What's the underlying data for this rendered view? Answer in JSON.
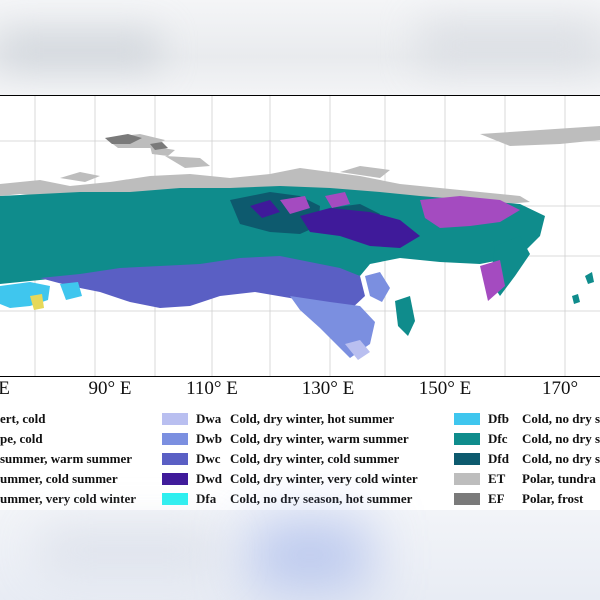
{
  "map": {
    "longitude_labels": [
      "E",
      "90° E",
      "110° E",
      "130° E",
      "150° E",
      "170°"
    ]
  },
  "legend": {
    "col1": [
      {
        "code": "",
        "label": "ert, cold"
      },
      {
        "code": "",
        "label": "pe, cold"
      },
      {
        "code": "",
        "label": "summer, warm summer"
      },
      {
        "code": "",
        "label": "ummer, cold summer"
      },
      {
        "code": "",
        "label": "ummer, very cold winter"
      }
    ],
    "col2": [
      {
        "code": "Dwa",
        "label": "Cold, dry winter, hot summer",
        "color": "#b9bff0"
      },
      {
        "code": "Dwb",
        "label": "Cold, dry winter, warm summer",
        "color": "#7b8fe0"
      },
      {
        "code": "Dwc",
        "label": "Cold, dry winter, cold summer",
        "color": "#5a5fc4"
      },
      {
        "code": "Dwd",
        "label": "Cold, dry winter, very cold winter",
        "color": "#3f1a9a"
      },
      {
        "code": "Dfa",
        "label": "Cold, no dry season, hot summer",
        "color": "#28f0f0"
      }
    ],
    "col3": [
      {
        "code": "Dfb",
        "label": "Cold, no dry s",
        "color": "#3fc6ee"
      },
      {
        "code": "Dfc",
        "label": "Cold, no dry s",
        "color": "#0f8c8c"
      },
      {
        "code": "Dfd",
        "label": "Cold, no dry s",
        "color": "#0d5a6e"
      },
      {
        "code": "ET",
        "label": "Polar, tundra",
        "color": "#bdbdbd"
      },
      {
        "code": "EF",
        "label": "Polar, frost",
        "color": "#7a7a7a"
      }
    ]
  }
}
